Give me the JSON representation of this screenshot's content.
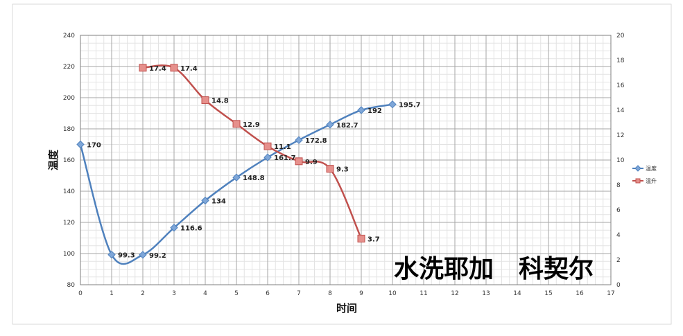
{
  "chart_data": {
    "type": "line",
    "x": [
      0,
      1,
      2,
      3,
      4,
      5,
      6,
      7,
      8,
      9,
      10
    ],
    "x_ticks": [
      "0",
      "1",
      "2",
      "3",
      "4",
      "5",
      "6",
      "7",
      "8",
      "9",
      "10",
      "11",
      "12",
      "13",
      "14",
      "15",
      "16",
      "17"
    ],
    "xlim": [
      0,
      17
    ],
    "xlabel": "时间",
    "ylabel": "温度",
    "ylim": [
      80,
      240
    ],
    "y_ticks": [
      "80",
      "100",
      "120",
      "140",
      "160",
      "180",
      "200",
      "220",
      "240"
    ],
    "y2lim": [
      0,
      20
    ],
    "y2_ticks": [
      "0",
      "2",
      "4",
      "6",
      "8",
      "10",
      "12",
      "14",
      "16",
      "18",
      "20"
    ],
    "grid": true,
    "legend_position": "right",
    "series": [
      {
        "name": "温度",
        "axis": "left",
        "color": "#4F81BD",
        "marker": "diamond",
        "x": [
          0,
          1,
          2,
          3,
          4,
          5,
          6,
          7,
          8,
          9,
          10
        ],
        "values": [
          170,
          99.3,
          99.2,
          116.6,
          134,
          148.8,
          161.7,
          172.8,
          182.7,
          192,
          195.7
        ],
        "labels": [
          "170",
          "99.3",
          "99.2",
          "116.6",
          "134",
          "148.8",
          "161.7",
          "172.8",
          "182.7",
          "192",
          "195.7"
        ]
      },
      {
        "name": "温升",
        "axis": "right",
        "color": "#C0504D",
        "marker": "square",
        "x": [
          2,
          3,
          4,
          5,
          6,
          7,
          8,
          9
        ],
        "values": [
          17.4,
          17.4,
          14.8,
          12.9,
          11.1,
          9.9,
          9.3,
          3.7
        ],
        "labels": [
          "17.4",
          "17.4",
          "14.8",
          "12.9",
          "11.1",
          "9.9",
          "9.3",
          "3.7"
        ]
      }
    ]
  },
  "watermark": "水洗耶加　科契尔"
}
